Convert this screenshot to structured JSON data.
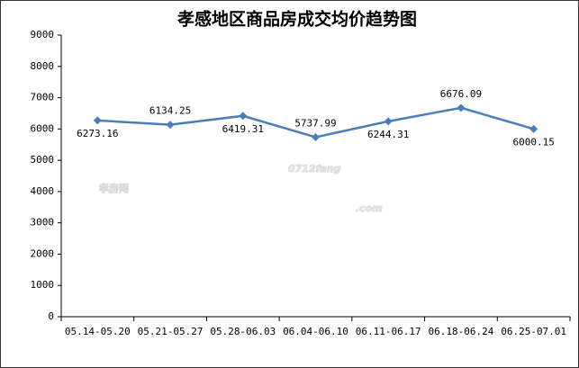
{
  "chart_data": {
    "type": "line",
    "title": "孝感地区商品房成交均价趋势图",
    "categories": [
      "05.14-05.20",
      "05.21-05.27",
      "05.28-06.03",
      "06.04-06.10",
      "06.11-06.17",
      "06.18-06.24",
      "06.25-07.01"
    ],
    "series": [
      {
        "name": "成交均价",
        "color": "#4a7ebb",
        "values": [
          6273.16,
          6134.25,
          6419.31,
          5737.99,
          6244.31,
          6676.09,
          6000.15
        ]
      }
    ],
    "ylim": [
      0,
      9000
    ],
    "yticks": [
      0,
      1000,
      2000,
      3000,
      4000,
      5000,
      6000,
      7000,
      8000,
      9000
    ],
    "grid": false,
    "watermark": [
      "孝房网",
      "0712fang",
      ".com"
    ]
  }
}
